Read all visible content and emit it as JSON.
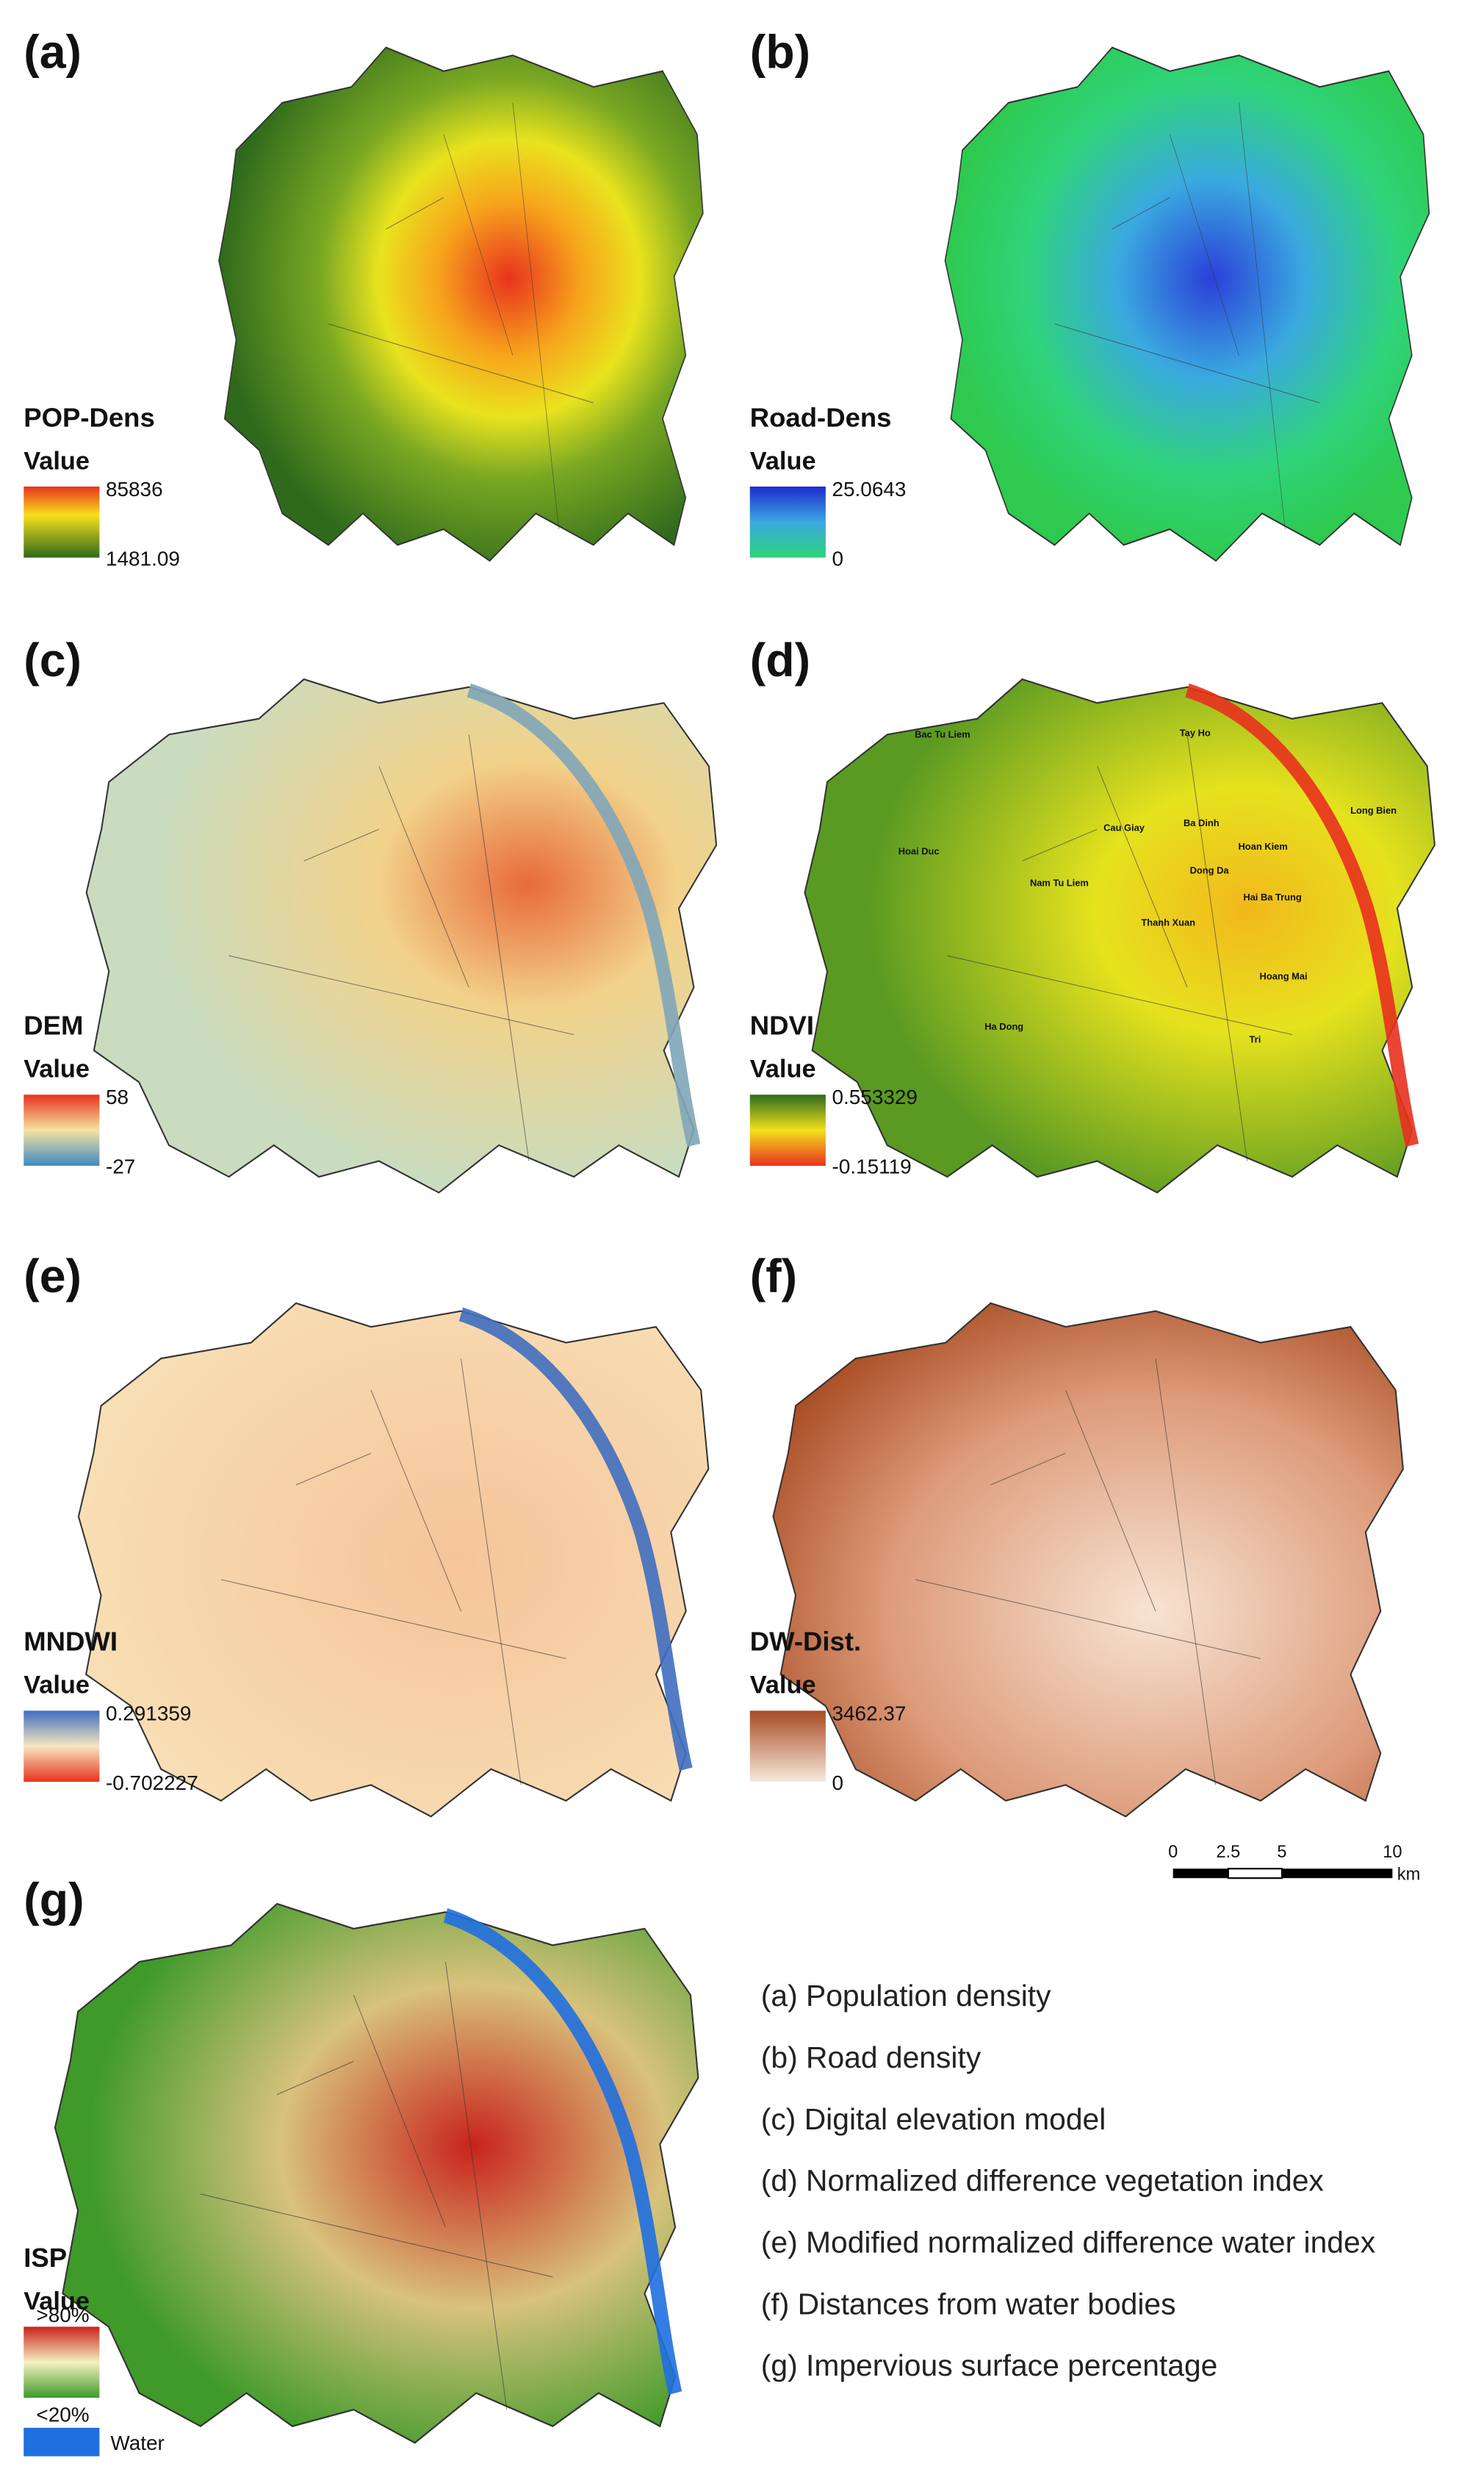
{
  "panels": [
    {
      "label": "(a)",
      "title": "POP-Dens",
      "legend_title": "Value",
      "legend_max": "85836",
      "legend_min": "1481.09"
    },
    {
      "label": "(b)",
      "title": "Road-Dens",
      "legend_title": "Value",
      "legend_max": "25.0643",
      "legend_min": "0"
    },
    {
      "label": "(c)",
      "title": "DEM",
      "legend_title": "Value",
      "legend_max": "58",
      "legend_min": "-27"
    },
    {
      "label": "(d)",
      "title": "NDVI",
      "legend_title": "Value",
      "legend_max": "0.553329",
      "legend_min": "-0.15119"
    },
    {
      "label": "(e)",
      "title": "MNDWI",
      "legend_title": "Value",
      "legend_max": "0.291359",
      "legend_min": "-0.702227"
    },
    {
      "label": "(f)",
      "title": "DW-Dist.",
      "legend_title": "Value",
      "legend_max": "3462.37",
      "legend_min": "0"
    },
    {
      "label": "(g)",
      "title": "ISP",
      "legend_title": "Value",
      "legend_max": ">80%",
      "legend_min": "<20%",
      "legend_water": "Water"
    }
  ],
  "district_names": [
    "Bac Tu Liem",
    "Tay Ho",
    "Long Bien",
    "Cau Giay",
    "Ba Dinh",
    "Hoan Kiem",
    "Hoai Duc",
    "Nam Tu Liem",
    "Dong Da",
    "Hai Ba Trung",
    "Thanh Xuan",
    "Hoang Mai",
    "Ha Dong",
    "Tri"
  ],
  "scale_bar": {
    "ticks": [
      "0",
      "2.5",
      "5",
      "10"
    ],
    "unit": "km"
  },
  "descriptions": [
    "(a) Population density",
    "(b) Road density",
    "(c) Digital elevation model",
    "(d) Normalized difference vegetation index",
    "(e) Modified normalized difference water index",
    "(f) Distances from water bodies",
    "(g) Impervious surface percentage"
  ]
}
